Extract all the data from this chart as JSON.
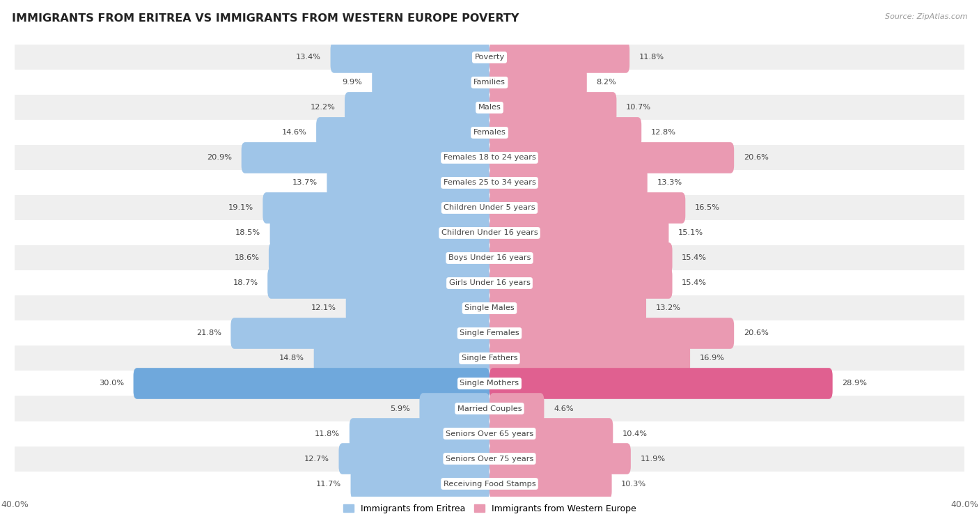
{
  "title": "IMMIGRANTS FROM ERITREA VS IMMIGRANTS FROM WESTERN EUROPE POVERTY",
  "source": "Source: ZipAtlas.com",
  "categories": [
    "Poverty",
    "Families",
    "Males",
    "Females",
    "Females 18 to 24 years",
    "Females 25 to 34 years",
    "Children Under 5 years",
    "Children Under 16 years",
    "Boys Under 16 years",
    "Girls Under 16 years",
    "Single Males",
    "Single Females",
    "Single Fathers",
    "Single Mothers",
    "Married Couples",
    "Seniors Over 65 years",
    "Seniors Over 75 years",
    "Receiving Food Stamps"
  ],
  "eritrea_values": [
    13.4,
    9.9,
    12.2,
    14.6,
    20.9,
    13.7,
    19.1,
    18.5,
    18.6,
    18.7,
    12.1,
    21.8,
    14.8,
    30.0,
    5.9,
    11.8,
    12.7,
    11.7
  ],
  "western_europe_values": [
    11.8,
    8.2,
    10.7,
    12.8,
    20.6,
    13.3,
    16.5,
    15.1,
    15.4,
    15.4,
    13.2,
    20.6,
    16.9,
    28.9,
    4.6,
    10.4,
    11.9,
    10.3
  ],
  "eritrea_color": "#9fc5e8",
  "western_europe_color": "#ea9ab2",
  "single_mothers_eritrea_color": "#6fa8dc",
  "single_mothers_western_color": "#e06090",
  "background_row_odd": "#efefef",
  "background_row_even": "#ffffff",
  "xlim": 40.0,
  "legend_eritrea": "Immigrants from Eritrea",
  "legend_western": "Immigrants from Western Europe"
}
